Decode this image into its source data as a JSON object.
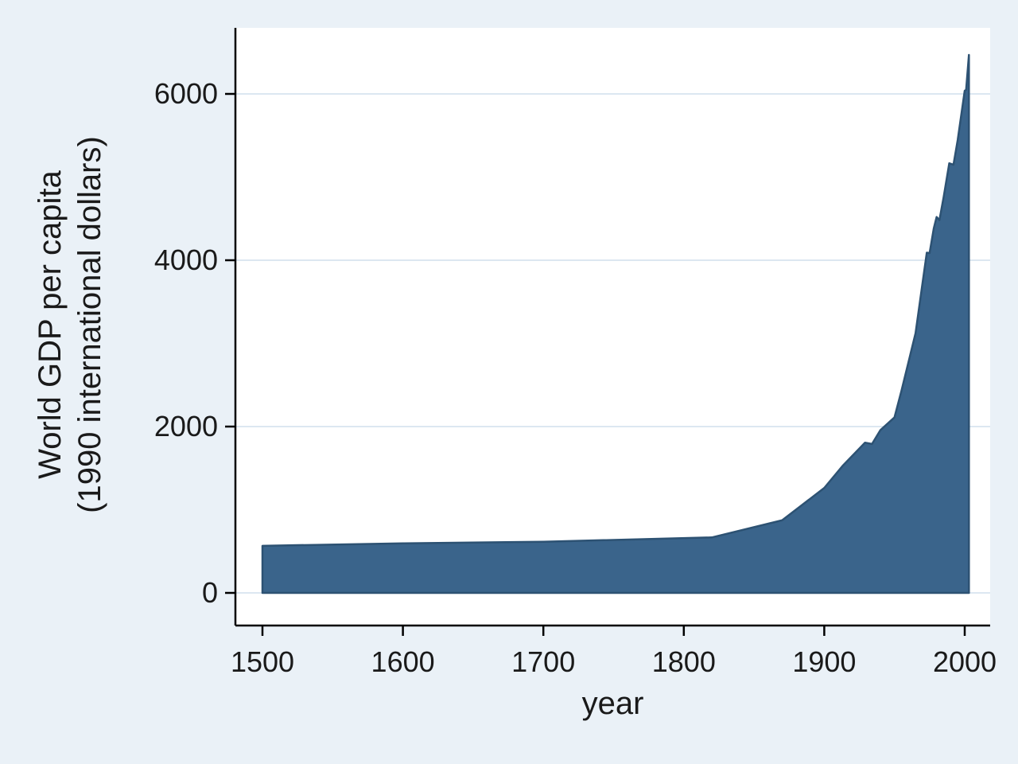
{
  "chart_data": {
    "type": "area",
    "title": "",
    "xlabel": "year",
    "ylabel_line1": "World GDP per capita",
    "ylabel_line2": "(1990 international dollars)",
    "xticks": [
      1500,
      1600,
      1700,
      1800,
      1900,
      2000
    ],
    "yticks": [
      0,
      2000,
      4000,
      6000
    ],
    "xlim": [
      1481,
      2018
    ],
    "ylim": [
      0,
      6790
    ],
    "grid": "horizontal",
    "legend": "none",
    "baseline": 0,
    "series": [
      {
        "name": "World GDP per capita (1990 international dollars)",
        "x": [
          1500,
          1600,
          1700,
          1820,
          1870,
          1900,
          1913,
          1929,
          1934,
          1940,
          1950,
          1955,
          1960,
          1965,
          1970,
          1973,
          1975,
          1978,
          1980,
          1982,
          1985,
          1989,
          1992,
          1995,
          2000,
          2001,
          2003
        ],
        "y": [
          566,
          596,
          615,
          667,
          873,
          1262,
          1526,
          1806,
          1791,
          1958,
          2111,
          2432,
          2777,
          3123,
          3729,
          4091,
          4086,
          4385,
          4520,
          4482,
          4759,
          5166,
          5149,
          5444,
          6038,
          6049,
          6469
        ]
      }
    ],
    "colors": {
      "area_fill": "#3a648b",
      "area_line": "#2d5273",
      "background": "#eaf1f7",
      "plot_background": "#ffffff",
      "grid": "#dce7f1",
      "axis": "#000000",
      "text": "#1a1a1a"
    }
  }
}
